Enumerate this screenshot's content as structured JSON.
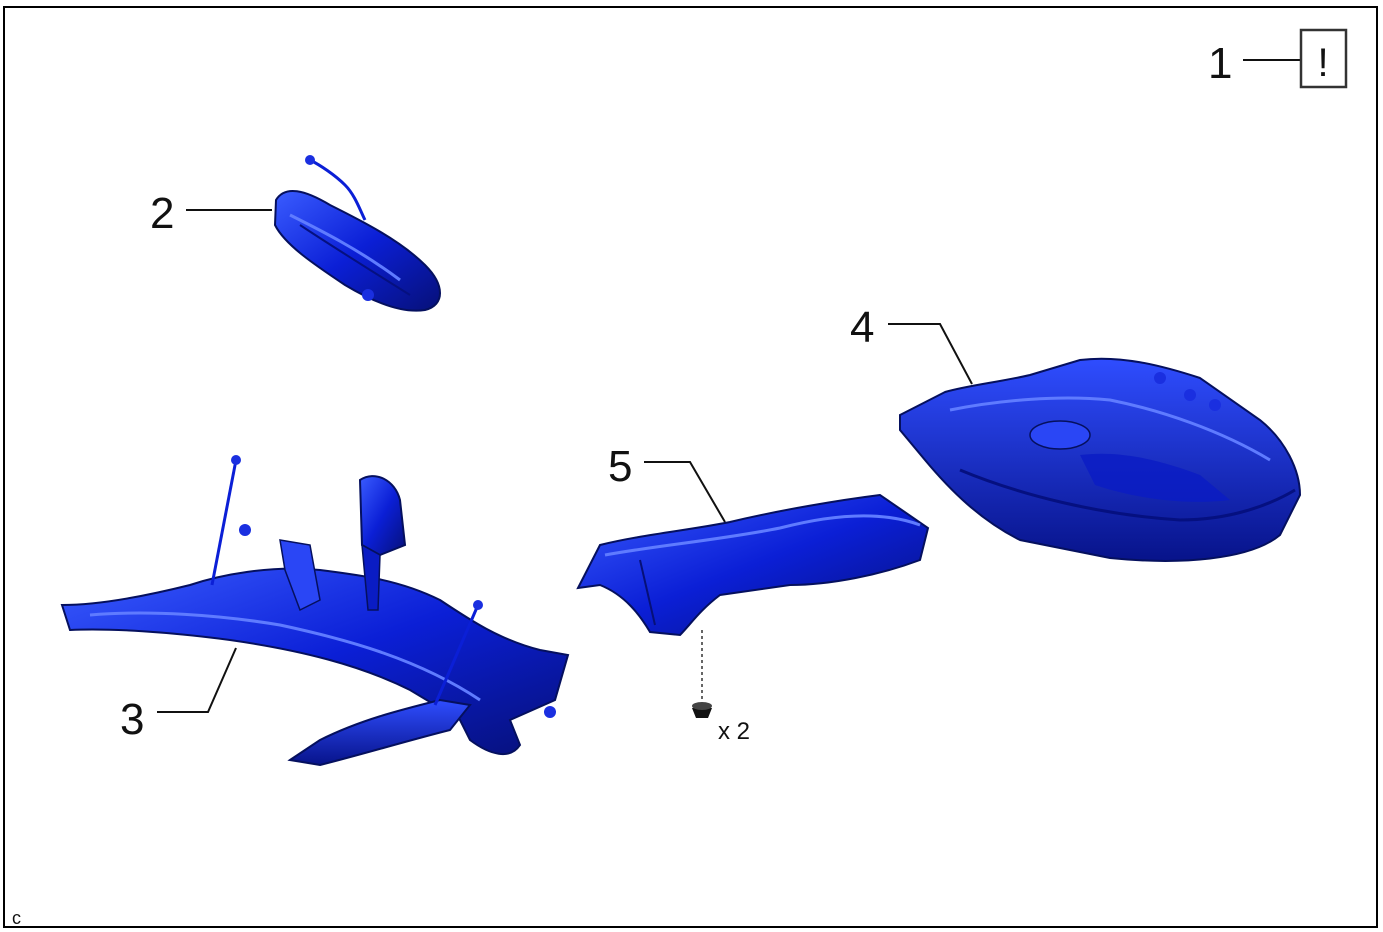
{
  "callouts": {
    "c1": "1",
    "c2": "2",
    "c3": "3",
    "c4": "4",
    "c5": "5"
  },
  "notice_symbol": "!",
  "quantity_label": "x 2",
  "corner_code": "c",
  "colors": {
    "part_blue": "#0b1fd6",
    "part_dark": "#061078",
    "part_light": "#3a5cff",
    "line": "#111111",
    "border": "#000000"
  },
  "parts": [
    {
      "id": 1,
      "icon": "caution-notice-icon"
    },
    {
      "id": 2,
      "icon": "exhaust-manifold-heat-insulator-icon"
    },
    {
      "id": 3,
      "icon": "rear-suspension-subframe-assembly-icon"
    },
    {
      "id": 4,
      "icon": "fuel-tank-assembly-icon"
    },
    {
      "id": 5,
      "icon": "heat-insulator-shield-icon"
    },
    {
      "id": "clip",
      "icon": "push-clip-icon"
    }
  ]
}
